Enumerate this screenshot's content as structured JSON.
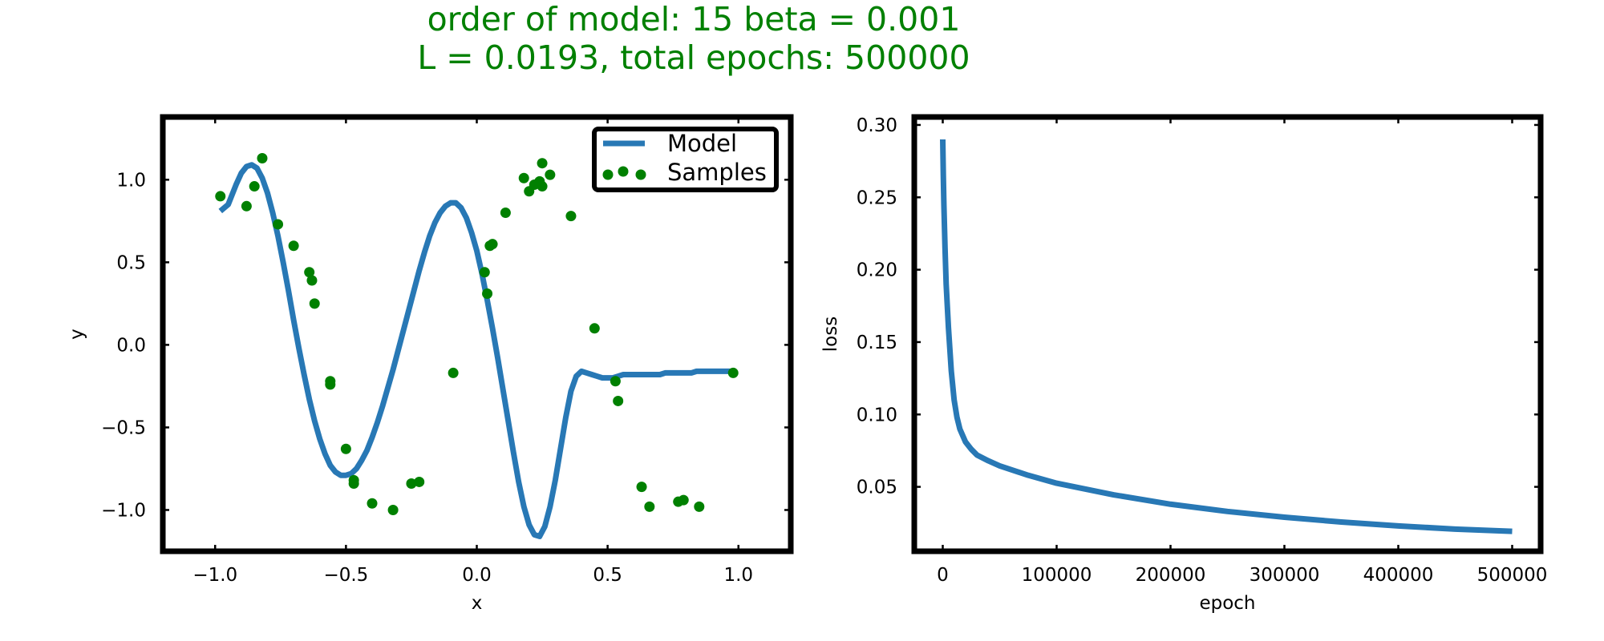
{
  "figure": {
    "title_line1": "order of model: 15  beta = 0.001",
    "title_line2": "L = 0.0193, total epochs: 500000",
    "title_color": "#008000"
  },
  "chart_data": [
    {
      "type": "line",
      "xlabel": "x",
      "ylabel": "y",
      "xlim": [
        -1.2,
        1.2
      ],
      "ylim": [
        -1.25,
        1.38
      ],
      "xticks": [
        -1.0,
        -0.5,
        0.0,
        0.5,
        1.0
      ],
      "xtick_labels": [
        "−1.0",
        "−0.5",
        "0.0",
        "0.5",
        "1.0"
      ],
      "yticks": [
        -1.0,
        -0.5,
        0.0,
        0.5,
        1.0
      ],
      "ytick_labels": [
        "−1.0",
        "−0.5",
        "0.0",
        "0.5",
        "1.0"
      ],
      "legend": {
        "position": "top-right",
        "entries": [
          "Model",
          "Samples"
        ]
      },
      "series": [
        {
          "name": "Model",
          "kind": "line",
          "color": "#2878b5",
          "x": [
            -0.98,
            -0.95,
            -0.92,
            -0.9,
            -0.88,
            -0.86,
            -0.84,
            -0.82,
            -0.8,
            -0.78,
            -0.76,
            -0.74,
            -0.72,
            -0.7,
            -0.68,
            -0.66,
            -0.64,
            -0.62,
            -0.6,
            -0.58,
            -0.56,
            -0.54,
            -0.52,
            -0.5,
            -0.48,
            -0.46,
            -0.44,
            -0.42,
            -0.4,
            -0.38,
            -0.36,
            -0.34,
            -0.32,
            -0.3,
            -0.28,
            -0.26,
            -0.24,
            -0.22,
            -0.2,
            -0.18,
            -0.16,
            -0.14,
            -0.12,
            -0.1,
            -0.08,
            -0.06,
            -0.04,
            -0.02,
            0.0,
            0.02,
            0.04,
            0.06,
            0.08,
            0.1,
            0.12,
            0.14,
            0.16,
            0.18,
            0.2,
            0.22,
            0.24,
            0.26,
            0.28,
            0.3,
            0.32,
            0.34,
            0.36,
            0.38,
            0.4,
            0.42,
            0.44,
            0.46,
            0.48,
            0.5,
            0.52,
            0.54,
            0.56,
            0.58,
            0.6,
            0.62,
            0.64,
            0.66,
            0.68,
            0.7,
            0.72,
            0.74,
            0.76,
            0.78,
            0.8,
            0.82,
            0.84,
            0.86,
            0.88,
            0.9,
            0.92,
            0.94,
            0.96,
            0.98
          ],
          "y": [
            0.81,
            0.85,
            0.97,
            1.04,
            1.08,
            1.09,
            1.07,
            1.01,
            0.92,
            0.8,
            0.66,
            0.5,
            0.33,
            0.15,
            -0.02,
            -0.18,
            -0.33,
            -0.46,
            -0.57,
            -0.66,
            -0.73,
            -0.77,
            -0.79,
            -0.79,
            -0.78,
            -0.75,
            -0.7,
            -0.64,
            -0.56,
            -0.47,
            -0.37,
            -0.26,
            -0.15,
            -0.03,
            0.09,
            0.21,
            0.33,
            0.45,
            0.56,
            0.66,
            0.74,
            0.8,
            0.84,
            0.86,
            0.86,
            0.83,
            0.77,
            0.68,
            0.57,
            0.43,
            0.27,
            0.1,
            -0.08,
            -0.27,
            -0.46,
            -0.65,
            -0.83,
            -0.98,
            -1.09,
            -1.15,
            -1.16,
            -1.1,
            -0.98,
            -0.82,
            -0.63,
            -0.44,
            -0.28,
            -0.19,
            -0.16,
            -0.17,
            -0.18,
            -0.19,
            -0.2,
            -0.2,
            -0.2,
            -0.19,
            -0.18,
            -0.18,
            -0.18,
            -0.18,
            -0.18,
            -0.18,
            -0.18,
            -0.18,
            -0.17,
            -0.17,
            -0.17,
            -0.17,
            -0.17,
            -0.17,
            -0.16,
            -0.16,
            -0.16,
            -0.16,
            -0.16,
            -0.16,
            -0.16,
            -0.16
          ]
        },
        {
          "name": "Samples",
          "kind": "scatter",
          "color": "#008000",
          "x": [
            -0.98,
            -0.88,
            -0.85,
            -0.82,
            -0.76,
            -0.7,
            -0.64,
            -0.63,
            -0.62,
            -0.56,
            -0.56,
            -0.5,
            -0.47,
            -0.47,
            -0.4,
            -0.32,
            -0.25,
            -0.22,
            -0.09,
            0.03,
            0.04,
            0.05,
            0.06,
            0.11,
            0.18,
            0.2,
            0.22,
            0.24,
            0.25,
            0.25,
            0.28,
            0.36,
            0.45,
            0.53,
            0.54,
            0.63,
            0.66,
            0.77,
            0.79,
            0.85,
            0.98
          ],
          "y": [
            0.9,
            0.84,
            0.96,
            1.13,
            0.73,
            0.6,
            0.44,
            0.39,
            0.25,
            -0.24,
            -0.22,
            -0.63,
            -0.82,
            -0.84,
            -0.96,
            -1.0,
            -0.84,
            -0.83,
            -0.17,
            0.44,
            0.31,
            0.6,
            0.61,
            0.8,
            1.01,
            0.93,
            0.97,
            0.99,
            1.1,
            0.96,
            1.03,
            0.78,
            0.1,
            -0.22,
            -0.34,
            -0.86,
            -0.98,
            -0.95,
            -0.94,
            -0.98,
            -0.17
          ]
        }
      ]
    },
    {
      "type": "line",
      "xlabel": "epoch",
      "ylabel": "loss",
      "xlim": [
        -25000,
        525000
      ],
      "ylim": [
        0.0055,
        0.3055
      ],
      "xticks": [
        0,
        100000,
        200000,
        300000,
        400000,
        500000
      ],
      "xtick_labels": [
        "0",
        "100000",
        "200000",
        "300000",
        "400000",
        "500000"
      ],
      "yticks": [
        0.05,
        0.1,
        0.15,
        0.2,
        0.25,
        0.3
      ],
      "ytick_labels": [
        "0.05",
        "0.10",
        "0.15",
        "0.20",
        "0.25",
        "0.30"
      ],
      "series": [
        {
          "kind": "line",
          "color": "#2878b5",
          "x": [
            0,
            500,
            1000,
            2000,
            3000,
            5000,
            7500,
            10000,
            12500,
            15000,
            20000,
            25000,
            30000,
            40000,
            50000,
            75000,
            100000,
            150000,
            200000,
            250000,
            300000,
            350000,
            400000,
            450000,
            500000
          ],
          "y": [
            0.29,
            0.265,
            0.245,
            0.215,
            0.19,
            0.16,
            0.13,
            0.11,
            0.098,
            0.09,
            0.081,
            0.076,
            0.072,
            0.068,
            0.0645,
            0.058,
            0.0525,
            0.0445,
            0.038,
            0.033,
            0.029,
            0.0257,
            0.023,
            0.0208,
            0.0193
          ]
        }
      ]
    }
  ]
}
